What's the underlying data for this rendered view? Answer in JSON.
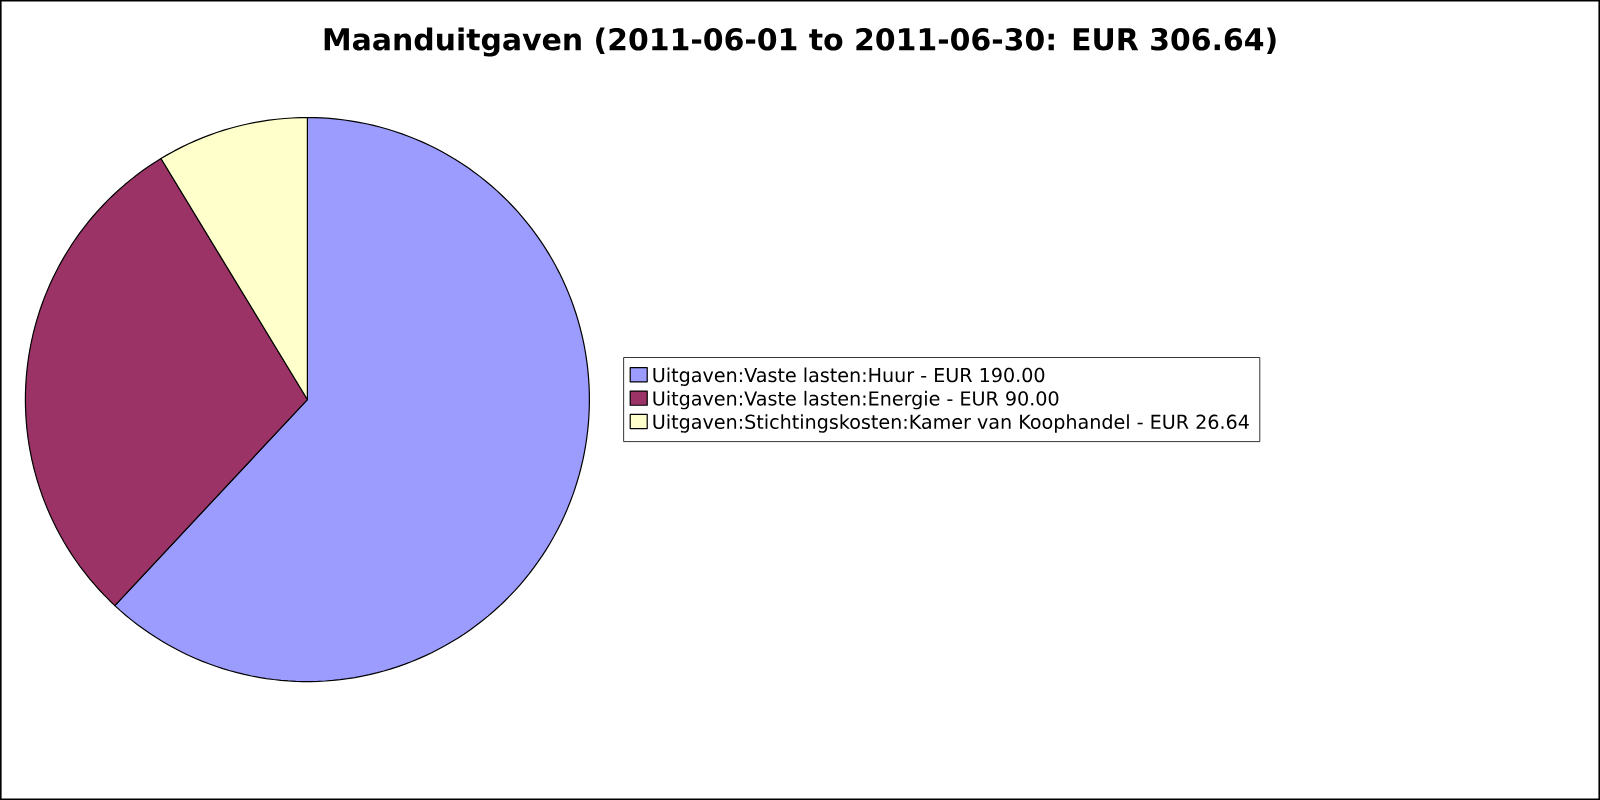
{
  "chart_data": {
    "type": "pie",
    "title": "Maanduitgaven (2011-06-01 to 2011-06-30: EUR 306.64)",
    "categories": [
      "Uitgaven:Vaste lasten:Huur - EUR 190.00",
      "Uitgaven:Vaste lasten:Energie - EUR 90.00",
      "Uitgaven:Stichtingskosten:Kamer van Koophandel - EUR 26.64"
    ],
    "values": [
      190.0,
      90.0,
      26.64
    ],
    "colors": [
      "#9c9cff",
      "#9c3366",
      "#ffffcc"
    ],
    "legend": "right"
  }
}
